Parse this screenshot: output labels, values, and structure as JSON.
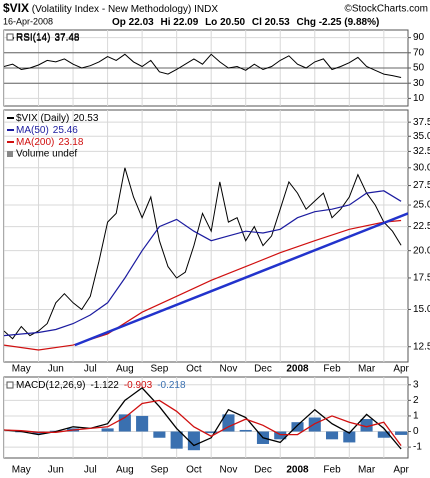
{
  "header": {
    "symbol": "$VIX",
    "name": "(Volatility Index - New Methodology)",
    "exchange": "INDX",
    "credit": "©StockCharts.com",
    "date": "16-Apr-2008",
    "quote": [
      "Op 22.03",
      "Hi 22.09",
      "Lo 20.50",
      "Cl 20.53",
      "Chg -2.25 (9.88%)"
    ]
  },
  "chart_data": [
    {
      "type": "line",
      "x": [
        0,
        0.25,
        0.5,
        0.75,
        1,
        1.25,
        1.5,
        1.75,
        2,
        2.25,
        2.5,
        2.75,
        3,
        3.25,
        3.5,
        3.75,
        4,
        4.25,
        4.5,
        4.75,
        5,
        5.25,
        5.5,
        5.75,
        6,
        6.25,
        6.5,
        6.75,
        7,
        7.25,
        7.5,
        7.75,
        8,
        8.25,
        8.5,
        8.75,
        9,
        9.25,
        9.5,
        9.75,
        10,
        10.25,
        10.5,
        10.75,
        11,
        11.25,
        11.5
      ],
      "series": [
        {
          "name": "RSI(14)",
          "color": "#000000",
          "values": [
            52,
            55,
            48,
            50,
            54,
            60,
            58,
            62,
            55,
            50,
            53,
            58,
            65,
            60,
            68,
            58,
            52,
            60,
            45,
            42,
            48,
            55,
            62,
            55,
            68,
            58,
            50,
            52,
            47,
            55,
            48,
            52,
            60,
            66,
            55,
            50,
            58,
            62,
            48,
            52,
            57,
            64,
            52,
            47,
            42,
            40,
            37.48
          ]
        }
      ],
      "xlim": [
        0,
        11.7
      ],
      "xticks": [
        0,
        1,
        2,
        3,
        4,
        5,
        6,
        7,
        8,
        9,
        10,
        11
      ],
      "ylim": [
        0,
        100
      ],
      "yticks": [
        10,
        30,
        50,
        70,
        90
      ],
      "ref_lines": [
        70,
        50,
        30
      ],
      "grid": true
    },
    {
      "type": "line",
      "log_scale": true,
      "x": [
        0,
        0.25,
        0.5,
        0.75,
        1,
        1.25,
        1.5,
        1.75,
        2,
        2.25,
        2.5,
        2.75,
        3,
        3.25,
        3.5,
        3.75,
        4,
        4.25,
        4.5,
        4.75,
        5,
        5.25,
        5.5,
        5.75,
        6,
        6.25,
        6.5,
        6.75,
        7,
        7.25,
        7.5,
        7.75,
        8,
        8.25,
        8.5,
        8.75,
        9,
        9.25,
        9.5,
        9.75,
        10,
        10.25,
        10.5,
        10.75,
        11,
        11.25,
        11.5
      ],
      "series": [
        {
          "name": "$VIX (Daily)",
          "color": "#000000",
          "values": [
            13.5,
            13.0,
            13.8,
            13.2,
            13.5,
            14.0,
            15.5,
            16.2,
            15.5,
            15.0,
            16.0,
            19.0,
            23.0,
            24.0,
            30.0,
            26.0,
            23.5,
            26.0,
            21.0,
            18.5,
            17.5,
            18.0,
            20.5,
            24.0,
            22.0,
            28.0,
            23.0,
            23.5,
            21.0,
            22.5,
            20.5,
            21.5,
            24.5,
            28.0,
            26.5,
            24.5,
            25.5,
            26.5,
            23.5,
            24.5,
            26.0,
            29.0,
            26.5,
            25.0,
            23.0,
            22.0,
            20.53
          ]
        },
        {
          "name": "MA(50)",
          "color": "#1c1ca0",
          "x": [
            0,
            0.5,
            1,
            1.5,
            2,
            2.5,
            3,
            3.5,
            4,
            4.5,
            5,
            5.5,
            6,
            6.5,
            7,
            7.5,
            8,
            8.5,
            9,
            9.5,
            10,
            10.5,
            11,
            11.5
          ],
          "values": [
            13.2,
            13.3,
            13.4,
            13.6,
            14.0,
            14.6,
            15.5,
            17.5,
            20.0,
            22.5,
            23.3,
            22.0,
            21.0,
            21.5,
            22.0,
            21.8,
            22.2,
            23.5,
            24.2,
            24.5,
            25.0,
            26.5,
            26.8,
            25.46
          ]
        },
        {
          "name": "MA(200)",
          "color": "#d01010",
          "x": [
            0,
            1,
            2,
            3,
            4,
            5,
            6,
            7,
            8,
            9,
            10,
            11,
            11.5
          ],
          "values": [
            12.6,
            12.3,
            12.6,
            13.3,
            14.8,
            16.0,
            17.3,
            18.5,
            19.8,
            21.0,
            22.2,
            23.0,
            23.18
          ]
        }
      ],
      "legend_note": "Volume undef",
      "trendline": {
        "color": "#2233cc",
        "x": [
          2.05,
          11.7
        ],
        "y": [
          12.6,
          24.0
        ]
      },
      "xlim": [
        0,
        11.7
      ],
      "xticks": [
        {
          "value": 0,
          "label": "May"
        },
        {
          "value": 1,
          "label": "Jun"
        },
        {
          "value": 2,
          "label": "Jul"
        },
        {
          "value": 3,
          "label": "Aug"
        },
        {
          "value": 4,
          "label": "Sep"
        },
        {
          "value": 5,
          "label": "Oct"
        },
        {
          "value": 6,
          "label": "Nov"
        },
        {
          "value": 7,
          "label": "Dec"
        },
        {
          "value": 8,
          "label": "2008"
        },
        {
          "value": 9,
          "label": "Feb"
        },
        {
          "value": 10,
          "label": "Mar"
        },
        {
          "value": 11,
          "label": "Apr"
        }
      ],
      "ylim": [
        11.6,
        39.8
      ],
      "yticks": [
        37.5,
        {
          "value": 35,
          "label": "35.0"
        },
        32.5,
        {
          "value": 30,
          "label": "30.0"
        },
        27.5,
        {
          "value": 25,
          "label": "25.0"
        },
        22.5,
        {
          "value": 20,
          "label": "20.0"
        },
        17.5,
        {
          "value": 15,
          "label": "15.0"
        },
        12.5
      ],
      "grid": true
    },
    {
      "type": "macd",
      "label": "MACD(12,26,9)",
      "x": [
        0,
        0.5,
        1,
        1.5,
        2,
        2.5,
        3,
        3.5,
        4,
        4.5,
        5,
        5.5,
        6,
        6.5,
        7,
        7.5,
        8,
        8.5,
        9,
        9.5,
        10,
        10.5,
        11,
        11.5
      ],
      "series": [
        {
          "color": "#000000",
          "values": [
            0.1,
            0.0,
            -0.2,
            0.0,
            0.3,
            0.2,
            0.5,
            2.0,
            2.8,
            1.6,
            0.2,
            -0.9,
            -0.4,
            1.4,
            0.9,
            -0.4,
            -0.7,
            0.4,
            1.4,
            0.5,
            -0.1,
            1.1,
            0.2,
            -1.122
          ]
        },
        {
          "color": "#d01010",
          "values": [
            0.1,
            0.05,
            -0.05,
            -0.05,
            0.1,
            0.2,
            0.3,
            0.9,
            1.8,
            2.0,
            1.3,
            0.3,
            -0.3,
            0.3,
            0.8,
            0.4,
            -0.2,
            -0.2,
            0.5,
            1.0,
            0.6,
            0.3,
            0.6,
            -0.903
          ]
        },
        {
          "color": "#3a70b0",
          "kind": "histogram",
          "values": [
            0.0,
            -0.05,
            -0.15,
            0.05,
            0.2,
            0.0,
            0.2,
            1.1,
            1.0,
            -0.4,
            -1.1,
            -1.2,
            -0.1,
            1.1,
            0.1,
            -0.8,
            -0.5,
            0.6,
            0.9,
            -0.5,
            -0.7,
            0.8,
            -0.4,
            -0.218
          ]
        }
      ],
      "xlim": [
        0,
        11.7
      ],
      "xticks": [
        {
          "value": 0,
          "label": "May"
        },
        {
          "value": 1,
          "label": "Jun"
        },
        {
          "value": 2,
          "label": "Jul"
        },
        {
          "value": 3,
          "label": "Aug"
        },
        {
          "value": 4,
          "label": "Sep"
        },
        {
          "value": 5,
          "label": "Oct"
        },
        {
          "value": 6,
          "label": "Nov"
        },
        {
          "value": 7,
          "label": "Dec"
        },
        {
          "value": 8,
          "label": "2008"
        },
        {
          "value": 9,
          "label": "Feb"
        },
        {
          "value": 10,
          "label": "Mar"
        },
        {
          "value": 11,
          "label": "Apr"
        }
      ],
      "ylim": [
        -1.7,
        3.5
      ],
      "yticks": [
        3,
        2,
        1,
        0,
        -1
      ],
      "grid": true
    }
  ]
}
